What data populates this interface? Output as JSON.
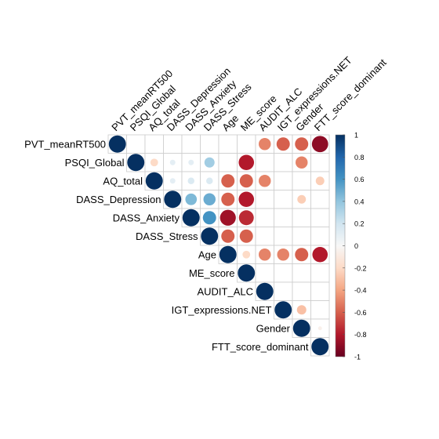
{
  "chart_data": {
    "type": "heatmap",
    "subtype": "correlation-matrix-upper-circles",
    "variables": [
      "PVT_meanRT500",
      "PSQI_Global",
      "AQ_total",
      "DASS_Depression",
      "DASS_Anxiety",
      "DASS_Stress",
      "Age",
      "ME_score",
      "AUDIT_ALC",
      "IGT_expressions.NET",
      "Gender",
      "FTT_score_dominant"
    ],
    "correlations": [
      [
        1,
        null,
        null,
        null,
        null,
        null,
        null,
        null,
        -0.5,
        -0.6,
        -0.6,
        -0.9
      ],
      [
        null,
        1,
        -0.2,
        0.1,
        0.1,
        0.35,
        null,
        -0.8,
        null,
        null,
        -0.5,
        null
      ],
      [
        null,
        null,
        1,
        0.1,
        0.15,
        0.15,
        -0.6,
        -0.6,
        -0.5,
        null,
        null,
        -0.25
      ],
      [
        null,
        null,
        null,
        1,
        0.45,
        0.5,
        -0.6,
        -0.8,
        null,
        null,
        -0.25,
        null
      ],
      [
        null,
        null,
        null,
        null,
        1,
        0.6,
        -0.85,
        -0.75,
        null,
        null,
        null,
        null
      ],
      [
        null,
        null,
        null,
        null,
        null,
        1,
        -0.6,
        -0.6,
        null,
        null,
        null,
        null
      ],
      [
        null,
        null,
        null,
        null,
        null,
        null,
        1,
        -0.2,
        -0.5,
        -0.5,
        -0.6,
        -0.8
      ],
      [
        null,
        null,
        null,
        null,
        null,
        null,
        null,
        1,
        null,
        null,
        null,
        null
      ],
      [
        null,
        null,
        null,
        null,
        null,
        null,
        null,
        null,
        1,
        null,
        null,
        null
      ],
      [
        null,
        null,
        null,
        null,
        null,
        null,
        null,
        null,
        null,
        1,
        -0.3,
        null
      ],
      [
        null,
        null,
        null,
        null,
        null,
        null,
        null,
        null,
        null,
        null,
        1,
        -0.05
      ],
      [
        null,
        null,
        null,
        null,
        null,
        null,
        null,
        null,
        null,
        null,
        null,
        1
      ]
    ],
    "colorbar": {
      "range": [
        -1,
        1
      ],
      "ticks": [
        "1",
        "0.8",
        "0.6",
        "0.4",
        "0.2",
        "0",
        "-0.2",
        "-0.4",
        "-0.6",
        "-0.8",
        "-1"
      ]
    },
    "colors": {
      "positive_strong": "#053061",
      "positive_mid": "#4393c3",
      "neutral": "#f7f7f7",
      "negative_mid": "#d6604d",
      "negative_strong": "#67001f",
      "grid": "#cccccc"
    }
  }
}
